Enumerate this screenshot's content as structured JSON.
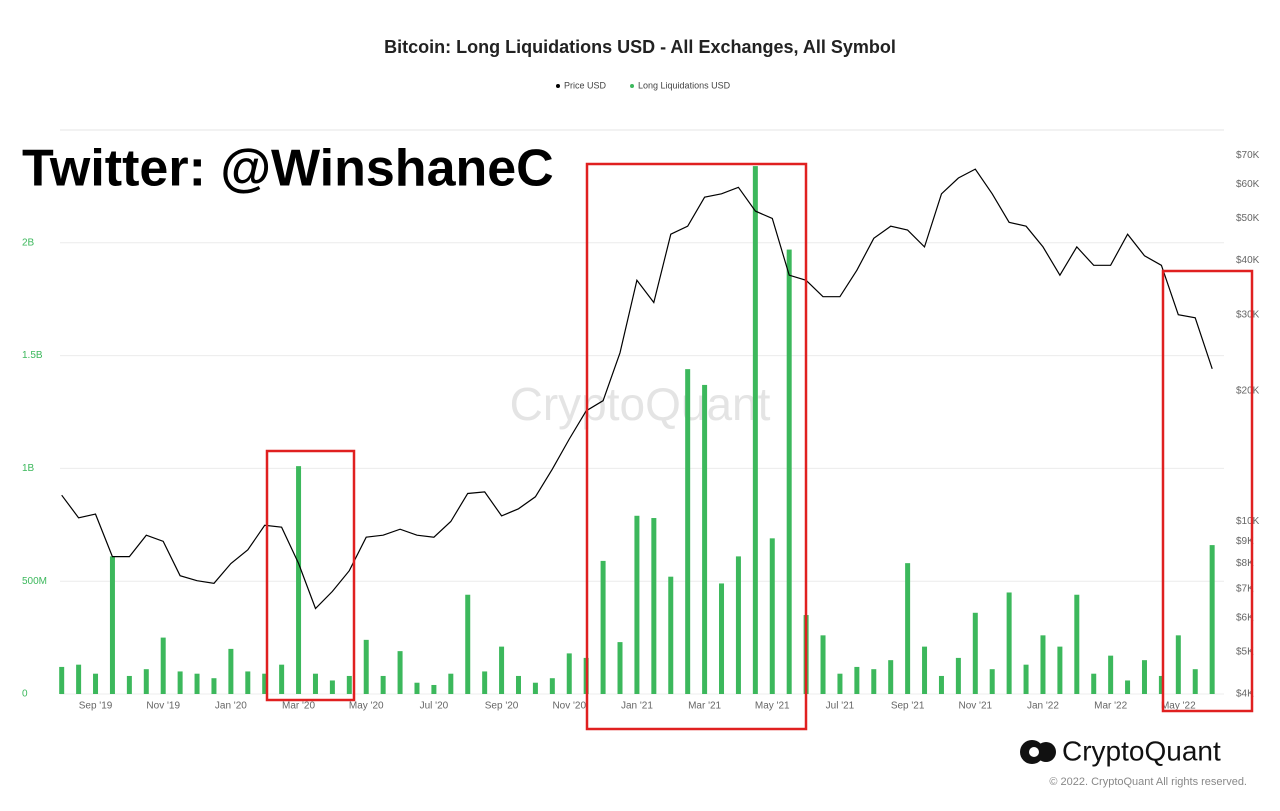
{
  "chart_data": {
    "type": "combo",
    "title": "Bitcoin: Long Liquidations USD - All Exchanges, All Symbol",
    "categories": [
      null,
      null,
      "Sep '19",
      null,
      null,
      null,
      "Nov '19",
      null,
      null,
      null,
      "Jan '20",
      null,
      null,
      null,
      "Mar '20",
      null,
      null,
      null,
      "May '20",
      null,
      null,
      null,
      "Jul '20",
      null,
      null,
      null,
      "Sep '20",
      null,
      null,
      null,
      "Nov '20",
      null,
      null,
      null,
      "Jan '21",
      null,
      null,
      null,
      "Mar '21",
      null,
      null,
      null,
      "May '21",
      null,
      null,
      null,
      "Jul '21",
      null,
      null,
      null,
      "Sep '21",
      null,
      null,
      null,
      "Nov '21",
      null,
      null,
      null,
      "Jan '22",
      null,
      null,
      null,
      "Mar '22",
      null,
      null,
      null,
      "May '22",
      null,
      null
    ],
    "series": [
      {
        "name": "Price USD",
        "kind": "line",
        "axis": "y2",
        "color": "#000000",
        "values": [
          11500,
          10200,
          10400,
          8300,
          8300,
          9300,
          9000,
          7500,
          7300,
          7200,
          8000,
          8600,
          9800,
          9700,
          8000,
          6300,
          6900,
          7700,
          9200,
          9300,
          9600,
          9300,
          9200,
          10000,
          11600,
          11700,
          10300,
          10700,
          11400,
          13200,
          15500,
          18000,
          19000,
          24500,
          36000,
          32000,
          46000,
          48000,
          56000,
          57000,
          59000,
          52000,
          50000,
          37000,
          36000,
          33000,
          33000,
          38000,
          45000,
          48000,
          47000,
          43000,
          57000,
          62000,
          65000,
          57000,
          49000,
          48000,
          43000,
          37000,
          43000,
          39000,
          39000,
          46000,
          41000,
          39000,
          30000,
          29500,
          22500
        ]
      },
      {
        "name": "Long Liquidations USD",
        "kind": "bar",
        "color": "#3cb85c",
        "values": [
          120000000,
          130000000,
          90000000,
          610000000,
          80000000,
          110000000,
          250000000,
          100000000,
          90000000,
          70000000,
          200000000,
          100000000,
          90000000,
          130000000,
          1010000000,
          90000000,
          60000000,
          80000000,
          240000000,
          80000000,
          190000000,
          50000000,
          40000000,
          90000000,
          440000000,
          100000000,
          210000000,
          80000000,
          50000000,
          70000000,
          180000000,
          160000000,
          590000000,
          230000000,
          790000000,
          780000000,
          520000000,
          1440000000,
          1370000000,
          490000000,
          610000000,
          2340000000,
          690000000,
          1970000000,
          350000000,
          260000000,
          90000000,
          120000000,
          110000000,
          150000000,
          580000000,
          210000000,
          80000000,
          160000000,
          360000000,
          110000000,
          450000000,
          130000000,
          260000000,
          210000000,
          440000000,
          90000000,
          170000000,
          60000000,
          150000000,
          80000000,
          260000000,
          110000000,
          660000000
        ]
      }
    ],
    "ylim": [
      0,
      2500000000
    ],
    "yticks": [
      0,
      {
        "value": 500000000,
        "label": "500M"
      },
      {
        "value": 1000000000,
        "label": "1B"
      },
      {
        "value": 1500000000,
        "label": "1.5B"
      },
      {
        "value": 2000000000,
        "label": "2B"
      }
    ],
    "y2lim": [
      4000,
      80000
    ],
    "y2scale": "log",
    "y2ticks": [
      {
        "value": 4000,
        "label": "$4K"
      },
      {
        "value": 5000,
        "label": "$5K"
      },
      {
        "value": 6000,
        "label": "$6K"
      },
      {
        "value": 7000,
        "label": "$7K"
      },
      {
        "value": 8000,
        "label": "$8K"
      },
      {
        "value": 9000,
        "label": "$9K"
      },
      {
        "value": 10000,
        "label": "$10K"
      },
      {
        "value": 20000,
        "label": "$20K"
      },
      {
        "value": 30000,
        "label": "$30K"
      },
      {
        "value": 40000,
        "label": "$40K"
      },
      {
        "value": 50000,
        "label": "$50K"
      },
      {
        "value": 60000,
        "label": "$60K"
      },
      {
        "value": 70000,
        "label": "$70K"
      }
    ],
    "grid": true,
    "legend": "top"
  },
  "watermark": "CryptoQuant",
  "overlay_text": "Twitter: @WinshaneC",
  "footer": {
    "brand": "CryptoQuant",
    "copyright": "© 2022. CryptoQuant All rights reserved."
  }
}
